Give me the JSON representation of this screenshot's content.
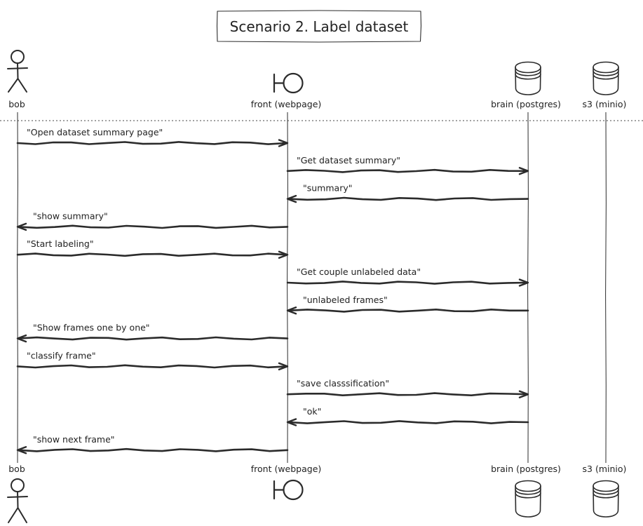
{
  "diagram": {
    "title": "Scenario 2. Label dataset",
    "participants": [
      {
        "id": "bob",
        "label": "bob",
        "type": "actor"
      },
      {
        "id": "front",
        "label": "front (webpage)",
        "type": "boundary"
      },
      {
        "id": "brain",
        "label": "brain (postgres)",
        "type": "database"
      },
      {
        "id": "s3",
        "label": "s3 (minio)",
        "type": "database"
      }
    ],
    "messages": [
      {
        "from": "bob",
        "to": "front",
        "label": "\"Open dataset summary page\""
      },
      {
        "from": "front",
        "to": "brain",
        "label": "\"Get dataset summary\""
      },
      {
        "from": "brain",
        "to": "front",
        "label": "\"summary\""
      },
      {
        "from": "front",
        "to": "bob",
        "label": "\"show summary\""
      },
      {
        "from": "bob",
        "to": "front",
        "label": "\"Start labeling\""
      },
      {
        "from": "front",
        "to": "brain",
        "label": "\"Get couple unlabeled data\""
      },
      {
        "from": "brain",
        "to": "front",
        "label": "\"unlabeled frames\""
      },
      {
        "from": "front",
        "to": "bob",
        "label": "\"Show frames one by one\""
      },
      {
        "from": "bob",
        "to": "front",
        "label": "\"classify frame\""
      },
      {
        "from": "front",
        "to": "brain",
        "label": "\"save classsification\""
      },
      {
        "from": "brain",
        "to": "front",
        "label": "\"ok\""
      },
      {
        "from": "front",
        "to": "bob",
        "label": "\"show next frame\""
      }
    ]
  }
}
